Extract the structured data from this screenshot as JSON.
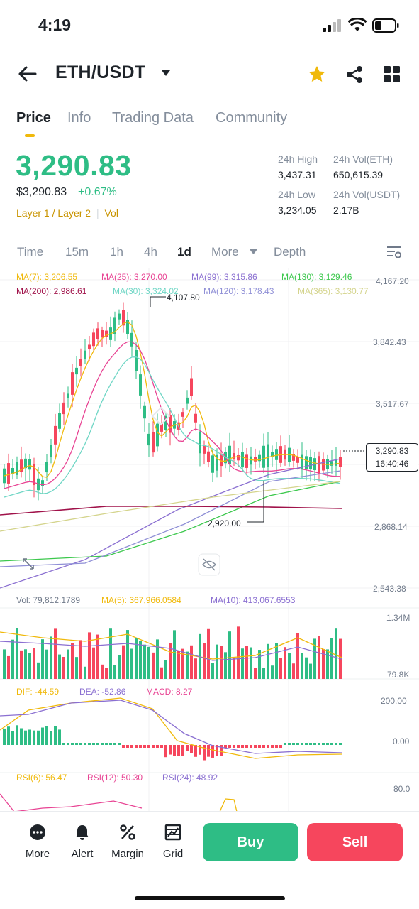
{
  "status": {
    "time": "4:19"
  },
  "header": {
    "pair": "ETH/USDT"
  },
  "tabs": [
    "Price",
    "Info",
    "Trading Data",
    "Community"
  ],
  "price": {
    "last": "3,290.83",
    "fiat": "$3,290.83",
    "change": "+0.67%",
    "tag1": "Layer 1 / Layer 2",
    "tag2": "Vol"
  },
  "stats": {
    "high_label": "24h High",
    "high": "3,437.31",
    "vol_eth_label": "24h Vol(ETH)",
    "vol_eth": "650,615.39",
    "low_label": "24h Low",
    "low": "3,234.05",
    "vol_usdt_label": "24h Vol(USDT)",
    "vol_usdt": "2.17B"
  },
  "timeframes": [
    "Time",
    "15m",
    "1h",
    "4h",
    "1d",
    "More",
    "Depth"
  ],
  "ma": {
    "ma7": "MA(7): 3,206.55",
    "ma25": "MA(25): 3,270.00",
    "ma99": "MA(99): 3,315.86",
    "ma130": "MA(130): 3,129.46",
    "ma200": "MA(200): 2,986.61",
    "ma30": "MA(30): 3,324.02",
    "ma120": "MA(120): 3,178.43",
    "ma365": "MA(365): 3,130.77"
  },
  "price_axis": [
    "4,167.20",
    "3,842.43",
    "3,517.67",
    "2,868.14",
    "2,543.38"
  ],
  "annotations": {
    "high": "4,107.80",
    "low": "2,920.00"
  },
  "current_tag": {
    "price": "3,290.83",
    "countdown": "16:40:46"
  },
  "volume": {
    "vol": "Vol: 79,812.1789",
    "ma5": "MA(5): 367,966.0584",
    "ma10": "MA(10): 413,067.6553",
    "axis_top": "1.34M",
    "axis_bottom": "79.8K"
  },
  "macd": {
    "dif": "DIF: -44.59",
    "dea": "DEA: -52.86",
    "macd": "MACD: 8.27",
    "axis_top": "200.00",
    "axis_zero": "0.00"
  },
  "rsi": {
    "rsi6": "RSI(6): 56.47",
    "rsi12": "RSI(12): 50.30",
    "rsi24": "RSI(24): 48.92",
    "axis_top": "80.0"
  },
  "bottom_bar": {
    "more": "More",
    "alert": "Alert",
    "margin": "Margin",
    "grid": "Grid",
    "buy": "Buy",
    "sell": "Sell"
  },
  "colors": {
    "up": "#2ebd85",
    "down": "#f6465d",
    "accent": "#f0b90b",
    "ma7": "#f0b90b",
    "ma25": "#e84393",
    "ma99": "#8a6fd1",
    "ma130": "#3cc84d",
    "ma200": "#a0124a",
    "ma30": "#6fd6c5",
    "ma120": "#8f8fd6",
    "ma365": "#d4d48c"
  },
  "icons": [
    "back-arrow-icon",
    "dropdown-caret-icon",
    "star-icon",
    "share-icon",
    "grid-layout-icon",
    "chart-settings-icon",
    "more-dots-icon",
    "bell-icon",
    "margin-percent-icon",
    "grid-bot-icon",
    "hide-eye-icon",
    "expand-icon"
  ]
}
